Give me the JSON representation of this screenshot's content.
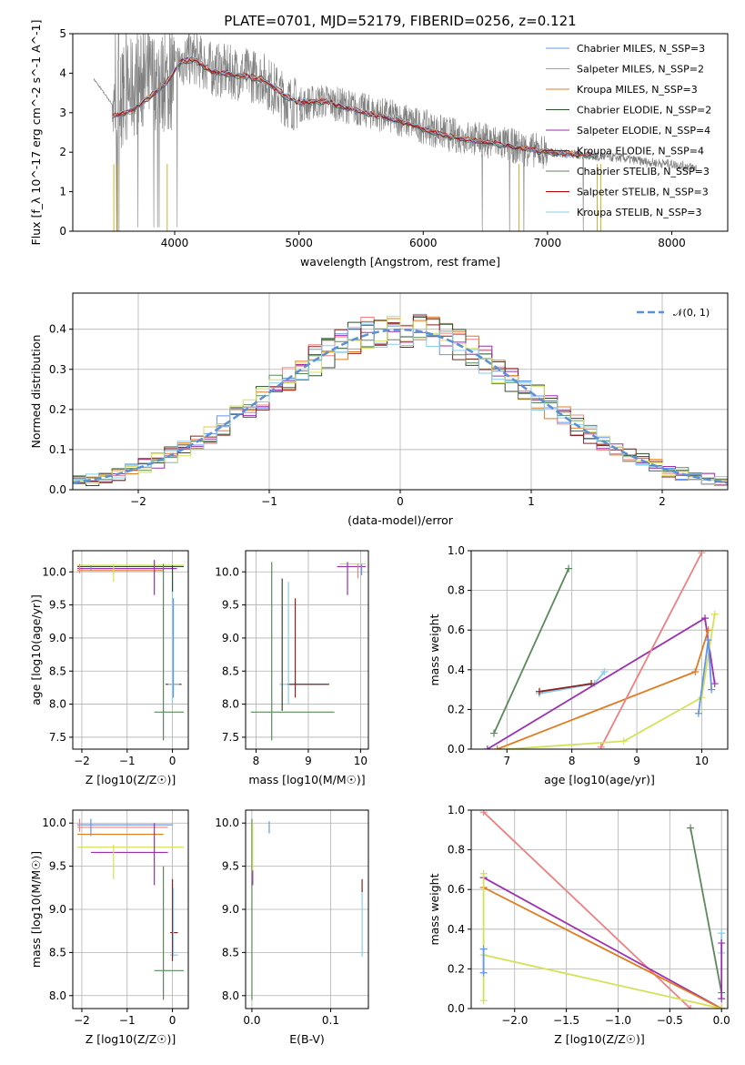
{
  "colors": [
    "#6495ed",
    "#f08080",
    "#e07b20",
    "#2f4f2f",
    "#9b30b0",
    "#8b2020",
    "#5a8a5a",
    "#c00000",
    "#87ceeb"
  ],
  "chart_data": [
    {
      "id": "spectrum",
      "type": "line",
      "title": "PLATE=0701, MJD=52179, FIBERID=0256, z=0.121",
      "xlabel": "wavelength [Angstrom, rest frame]",
      "ylabel": "Flux [f_λ 10^-17 erg cm^-2 s^-1 A^-1]",
      "xlim": [
        3180,
        8450
      ],
      "ylim": [
        0,
        5
      ],
      "xticks": [
        4000,
        5000,
        6000,
        7000,
        8000
      ],
      "yticks": [
        0,
        1,
        2,
        3,
        4,
        5
      ],
      "data_color": "#808080",
      "data_points": [
        [
          3350,
          3.85
        ],
        [
          3500,
          3.2
        ],
        [
          3650,
          3.6
        ],
        [
          3800,
          3.85
        ],
        [
          3950,
          3.7
        ],
        [
          4050,
          4.3
        ],
        [
          4150,
          4.4
        ],
        [
          4300,
          4.1
        ],
        [
          4500,
          4.0
        ],
        [
          4700,
          3.9
        ],
        [
          4900,
          3.3
        ],
        [
          5000,
          3.2
        ],
        [
          5200,
          3.3
        ],
        [
          5400,
          3.15
        ],
        [
          5600,
          3.0
        ],
        [
          5800,
          2.85
        ],
        [
          6000,
          2.65
        ],
        [
          6200,
          2.45
        ],
        [
          6400,
          2.35
        ],
        [
          6600,
          2.25
        ],
        [
          6800,
          2.1
        ],
        [
          7000,
          2.0
        ],
        [
          7200,
          1.95
        ],
        [
          7400,
          1.9
        ],
        [
          7600,
          1.85
        ],
        [
          7800,
          1.75
        ],
        [
          8000,
          1.7
        ],
        [
          8200,
          1.6
        ]
      ],
      "model_points": [
        [
          3500,
          2.9
        ],
        [
          3650,
          3.05
        ],
        [
          3800,
          3.4
        ],
        [
          3950,
          3.8
        ],
        [
          4050,
          4.3
        ],
        [
          4150,
          4.35
        ],
        [
          4300,
          4.05
        ],
        [
          4500,
          3.95
        ],
        [
          4700,
          3.85
        ],
        [
          4900,
          3.4
        ],
        [
          5000,
          3.25
        ],
        [
          5200,
          3.3
        ],
        [
          5400,
          3.1
        ],
        [
          5600,
          2.95
        ],
        [
          5800,
          2.8
        ],
        [
          6000,
          2.6
        ],
        [
          6200,
          2.4
        ],
        [
          6400,
          2.3
        ],
        [
          6600,
          2.2
        ],
        [
          6800,
          2.1
        ],
        [
          7000,
          2.0
        ],
        [
          7200,
          1.95
        ],
        [
          7400,
          1.9
        ]
      ],
      "series": [
        {
          "name": "Chabrier MILES, N_SSP=3",
          "color": "#6495ed"
        },
        {
          "name": "Salpeter MILES, N_SSP=2",
          "color": "#f08080"
        },
        {
          "name": "Kroupa MILES, N_SSP=3",
          "color": "#e07b20"
        },
        {
          "name": "Chabrier ELODIE, N_SSP=2",
          "color": "#2f4f2f"
        },
        {
          "name": "Salpeter ELODIE, N_SSP=4",
          "color": "#9b30b0"
        },
        {
          "name": "Kroupa ELODIE, N_SSP=4",
          "color": "#8b2020"
        },
        {
          "name": "Chabrier STELIB, N_SSP=3",
          "color": "#5a8a5a"
        },
        {
          "name": "Salpeter STELIB, N_SSP=3",
          "color": "#c00000"
        },
        {
          "name": "Kroupa STELIB, N_SSP=3",
          "color": "#87ceeb"
        }
      ]
    },
    {
      "id": "residuals",
      "type": "line",
      "xlabel": "(data-model)/error",
      "ylabel": "Normed distribution",
      "xlim": [
        -2.5,
        2.5
      ],
      "ylim": [
        0,
        0.49
      ],
      "xticks": [
        -2,
        -1,
        0,
        1,
        2
      ],
      "yticks": [
        0.0,
        0.1,
        0.2,
        0.3,
        0.4
      ],
      "legend": "𝒩(0, 1)",
      "bin_width": 0.1,
      "series_colors": [
        "#6495ed",
        "#f08080",
        "#e07b20",
        "#2f4f2f",
        "#9b30b0",
        "#8b2020",
        "#5a8a5a",
        "#d4e157",
        "#87ceeb"
      ],
      "gaussian_color": "#5b8fd6"
    },
    {
      "id": "age-vs-z",
      "type": "scatter",
      "xlabel": "Z [log10(Z/Z☉)]",
      "ylabel": "age [log10(age/yr)]",
      "xlim": [
        -2.2,
        0.35
      ],
      "ylim": [
        7.32,
        10.32
      ],
      "xticks": [
        -2,
        -1,
        0
      ],
      "yticks": [
        7.5,
        8.0,
        8.5,
        9.0,
        9.5,
        10.0
      ],
      "hbars": [
        {
          "y": 10.08,
          "x0": -2.1,
          "x1": 0.25,
          "c": 3
        },
        {
          "y": 10.1,
          "x0": -2.1,
          "x1": 0.25,
          "c": 7
        },
        {
          "y": 10.05,
          "x0": -2.1,
          "x1": 0.1,
          "c": 4
        },
        {
          "y": 10.02,
          "x0": -2.1,
          "x1": -0.2,
          "c": 2
        },
        {
          "y": 8.3,
          "x0": -0.15,
          "x1": 0.2,
          "c": 5
        },
        {
          "y": 8.3,
          "x0": -0.1,
          "x1": 0.15,
          "c": 8
        },
        {
          "y": 7.88,
          "x0": -0.4,
          "x1": 0.25,
          "c": 6
        }
      ],
      "vbars": [
        {
          "x": -2.05,
          "y0": 9.98,
          "y1": 10.12,
          "c": 1
        },
        {
          "x": -1.8,
          "y0": 10.02,
          "y1": 10.1,
          "c": 0
        },
        {
          "x": -1.3,
          "y0": 9.85,
          "y1": 10.12,
          "c": 7
        },
        {
          "x": -0.4,
          "y0": 9.65,
          "y1": 10.18,
          "c": 4
        },
        {
          "x": -0.2,
          "y0": 7.45,
          "y1": 10.12,
          "c": 6
        },
        {
          "x": 0.0,
          "y0": 8.0,
          "y1": 9.9,
          "c": 8
        },
        {
          "x": 0.02,
          "y0": 8.1,
          "y1": 9.6,
          "c": 0
        },
        {
          "x": 0.0,
          "y0": 9.7,
          "y1": 10.1,
          "c": 3
        }
      ]
    },
    {
      "id": "age-vs-mass",
      "type": "scatter",
      "xlabel": "mass [log10(M/M☉)]",
      "ylabel": "",
      "xlim": [
        7.8,
        10.15
      ],
      "ylim": [
        7.32,
        10.32
      ],
      "xticks": [
        8,
        9,
        10
      ],
      "yticks": [
        7.5,
        8.0,
        8.5,
        9.0,
        9.5,
        10.0
      ],
      "hbars": [
        {
          "y": 10.08,
          "x0": 9.55,
          "x1": 10.1,
          "c": 4
        },
        {
          "y": 10.12,
          "x0": 9.6,
          "x1": 10.1,
          "c": 7
        },
        {
          "y": 8.3,
          "x0": 8.45,
          "x1": 9.35,
          "c": 8
        },
        {
          "y": 8.3,
          "x0": 8.6,
          "x1": 9.4,
          "c": 5
        },
        {
          "y": 7.88,
          "x0": 7.9,
          "x1": 9.5,
          "c": 6
        }
      ],
      "vbars": [
        {
          "x": 8.3,
          "y0": 7.45,
          "y1": 10.15,
          "c": 6
        },
        {
          "x": 8.5,
          "y0": 7.9,
          "y1": 9.9,
          "c": 3
        },
        {
          "x": 8.62,
          "y0": 8.0,
          "y1": 9.85,
          "c": 8
        },
        {
          "x": 8.75,
          "y0": 8.1,
          "y1": 9.6,
          "c": 5
        },
        {
          "x": 9.75,
          "y0": 9.65,
          "y1": 10.15,
          "c": 4
        },
        {
          "x": 9.95,
          "y0": 9.9,
          "y1": 10.12,
          "c": 1
        },
        {
          "x": 10.02,
          "y0": 9.95,
          "y1": 10.12,
          "c": 0
        }
      ]
    },
    {
      "id": "weight-vs-age",
      "type": "line",
      "xlabel": "age [log10(age/yr)]",
      "ylabel": "mass weight",
      "xlim": [
        6.45,
        10.4
      ],
      "ylim": [
        0,
        1.0
      ],
      "xticks": [
        7,
        8,
        9,
        10
      ],
      "yticks": [
        0.0,
        0.2,
        0.4,
        0.6,
        0.8,
        1.0
      ],
      "lines": [
        {
          "c": 6,
          "pts": [
            [
              6.8,
              0.08
            ],
            [
              7.95,
              0.91
            ]
          ]
        },
        {
          "c": 8,
          "pts": [
            [
              7.5,
              0.28
            ],
            [
              8.35,
              0.33
            ],
            [
              8.5,
              0.39
            ]
          ]
        },
        {
          "c": 5,
          "pts": [
            [
              7.5,
              0.29
            ],
            [
              8.3,
              0.33
            ]
          ]
        },
        {
          "c": 4,
          "pts": [
            [
              6.7,
              0.0
            ],
            [
              10.05,
              0.66
            ],
            [
              10.2,
              0.33
            ]
          ]
        },
        {
          "c": 2,
          "pts": [
            [
              6.85,
              0.0
            ],
            [
              9.9,
              0.39
            ],
            [
              10.1,
              0.6
            ]
          ]
        },
        {
          "c": 1,
          "pts": [
            [
              8.45,
              0.01
            ],
            [
              10.0,
              0.99
            ]
          ]
        },
        {
          "c": 7,
          "pts": [
            [
              7.0,
              0.0
            ],
            [
              8.8,
              0.04
            ],
            [
              10.0,
              0.26
            ],
            [
              10.2,
              0.68
            ]
          ]
        },
        {
          "c": 0,
          "pts": [
            [
              9.95,
              0.18
            ],
            [
              10.1,
              0.55
            ],
            [
              10.15,
              0.3
            ]
          ]
        }
      ]
    },
    {
      "id": "mass-vs-z",
      "type": "scatter",
      "xlabel": "Z [log10(Z/Z☉)]",
      "ylabel": "mass [log10(M/M☉)]",
      "xlim": [
        -2.2,
        0.35
      ],
      "ylim": [
        7.85,
        10.15
      ],
      "xticks": [
        -2,
        -1,
        0
      ],
      "yticks": [
        8.0,
        8.5,
        9.0,
        9.5,
        10.0
      ],
      "hbars": [
        {
          "y": 9.98,
          "x0": -2.1,
          "x1": 0.0,
          "c": 0
        },
        {
          "y": 9.95,
          "x0": -2.1,
          "x1": -0.1,
          "c": 1
        },
        {
          "y": 9.87,
          "x0": -2.1,
          "x1": -0.2,
          "c": 2
        },
        {
          "y": 9.72,
          "x0": -2.1,
          "x1": 0.25,
          "c": 7
        },
        {
          "y": 9.66,
          "x0": -1.8,
          "x1": -0.1,
          "c": 4
        },
        {
          "y": 8.73,
          "x0": -0.05,
          "x1": 0.12,
          "c": 5
        },
        {
          "y": 8.47,
          "x0": -0.05,
          "x1": 0.12,
          "c": 8
        },
        {
          "y": 8.29,
          "x0": -0.4,
          "x1": 0.25,
          "c": 6
        }
      ],
      "vbars": [
        {
          "x": -2.05,
          "y0": 9.9,
          "y1": 10.05,
          "c": 1
        },
        {
          "x": -1.8,
          "y0": 9.85,
          "y1": 10.05,
          "c": 0
        },
        {
          "x": -1.3,
          "y0": 9.35,
          "y1": 9.75,
          "c": 7
        },
        {
          "x": -0.4,
          "y0": 9.28,
          "y1": 10.0,
          "c": 4
        },
        {
          "x": -0.2,
          "y0": 7.95,
          "y1": 9.5,
          "c": 6
        },
        {
          "x": 0.0,
          "y0": 8.4,
          "y1": 9.35,
          "c": 5
        },
        {
          "x": 0.02,
          "y0": 8.45,
          "y1": 9.25,
          "c": 8
        }
      ]
    },
    {
      "id": "mass-vs-ebv",
      "type": "scatter",
      "xlabel": "E(B-V)",
      "ylabel": "",
      "xlim": [
        -0.008,
        0.148
      ],
      "ylim": [
        7.85,
        10.15
      ],
      "xticks": [
        0.0,
        0.1
      ],
      "yticks": [
        8.0,
        8.5,
        9.0,
        9.5,
        10.0
      ],
      "vbars": [
        {
          "x": 0.0,
          "y0": 7.95,
          "y1": 10.05,
          "c": 6
        },
        {
          "x": 0.001,
          "y0": 9.35,
          "y1": 10.0,
          "c": 7
        },
        {
          "x": 0.001,
          "y0": 9.28,
          "y1": 9.45,
          "c": 4
        },
        {
          "x": 0.022,
          "y0": 9.88,
          "y1": 10.02,
          "c": 0
        },
        {
          "x": 0.14,
          "y0": 8.45,
          "y1": 9.25,
          "c": 8
        },
        {
          "x": 0.14,
          "y0": 9.2,
          "y1": 9.35,
          "c": 5
        }
      ]
    },
    {
      "id": "weight-vs-z",
      "type": "line",
      "xlabel": "Z [log10(Z/Z☉)]",
      "ylabel": "mass weight",
      "xlim": [
        -2.42,
        0.06
      ],
      "ylim": [
        0,
        1.0
      ],
      "xticks": [
        -2.0,
        -1.5,
        -1.0,
        -0.5,
        0.0
      ],
      "yticks": [
        0.0,
        0.2,
        0.4,
        0.6,
        0.8,
        1.0
      ],
      "lines": [
        {
          "c": 1,
          "pts": [
            [
              -2.3,
              0.99
            ],
            [
              -0.3,
              0.0
            ]
          ]
        },
        {
          "c": 4,
          "pts": [
            [
              -2.3,
              0.66
            ],
            [
              0.0,
              0.0
            ]
          ]
        },
        {
          "c": 2,
          "pts": [
            [
              -2.3,
              0.61
            ],
            [
              0.0,
              0.0
            ]
          ]
        },
        {
          "c": 7,
          "pts": [
            [
              -2.3,
              0.27
            ],
            [
              0.0,
              0.0
            ]
          ]
        },
        {
          "c": 6,
          "pts": [
            [
              -0.3,
              0.91
            ],
            [
              0.0,
              0.08
            ]
          ]
        },
        {
          "c": 7,
          "pts": [
            [
              -2.3,
              0.04
            ],
            [
              -2.3,
              0.68
            ]
          ]
        },
        {
          "c": 0,
          "pts": [
            [
              -2.3,
              0.18
            ],
            [
              -2.3,
              0.3
            ]
          ]
        },
        {
          "c": 8,
          "pts": [
            [
              0.0,
              0.28
            ],
            [
              0.0,
              0.38
            ]
          ]
        },
        {
          "c": 4,
          "pts": [
            [
              0.0,
              0.05
            ],
            [
              0.0,
              0.33
            ]
          ]
        }
      ]
    }
  ]
}
